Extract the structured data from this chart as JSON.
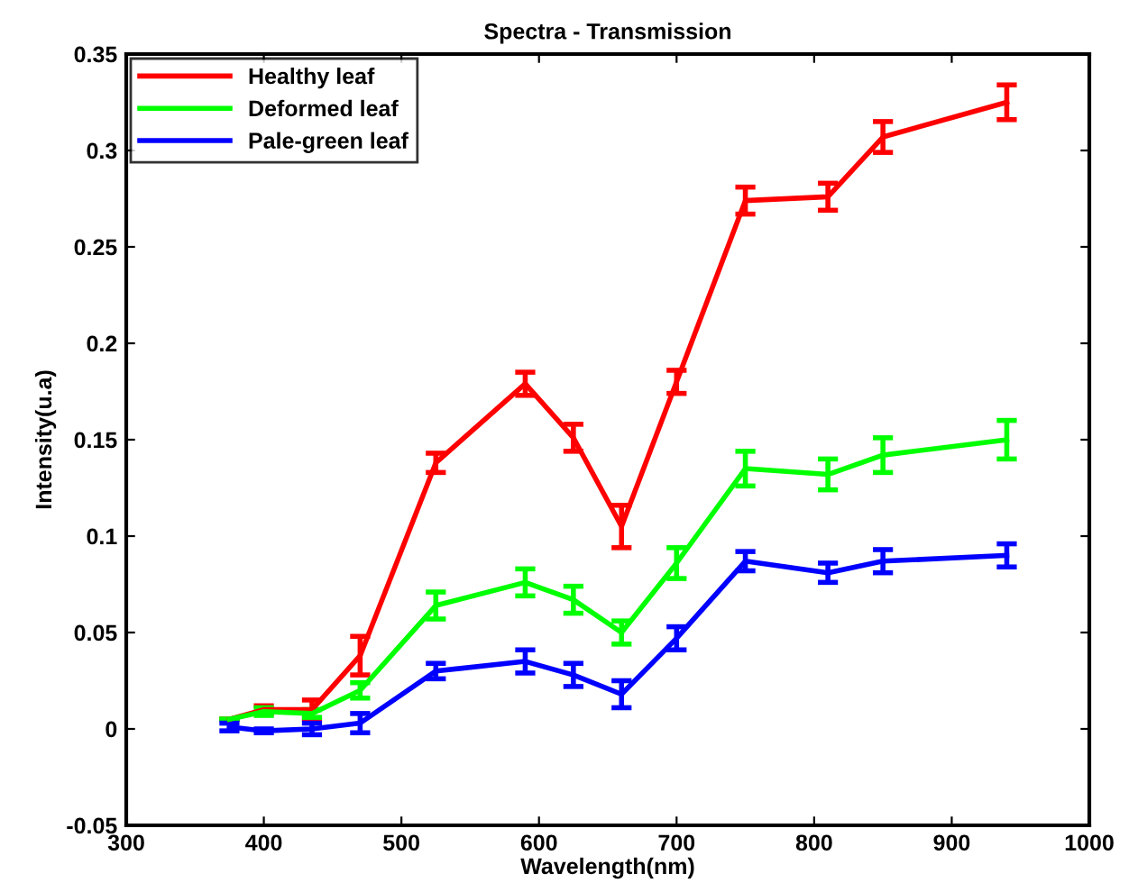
{
  "chart_data": {
    "type": "line",
    "title": "Spectra - Transmission",
    "xlabel": "Wavelength(nm)",
    "ylabel": "Intensity(u.a)",
    "x": [
      375,
      400,
      435,
      470,
      525,
      590,
      625,
      660,
      700,
      750,
      810,
      850,
      940
    ],
    "series": [
      {
        "name": "Healthy leaf",
        "color": "#ff0000",
        "values": [
          0.005,
          0.01,
          0.01,
          0.038,
          0.138,
          0.179,
          0.151,
          0.105,
          0.18,
          0.274,
          0.276,
          0.307,
          0.325
        ],
        "errors": [
          null,
          0.002,
          0.005,
          0.01,
          0.005,
          0.006,
          0.007,
          0.011,
          0.006,
          0.007,
          0.007,
          0.008,
          0.009
        ]
      },
      {
        "name": "Deformed leaf",
        "color": "#00ff00",
        "values": [
          0.005,
          0.009,
          0.008,
          0.02,
          0.064,
          0.076,
          0.067,
          0.05,
          0.086,
          0.135,
          0.132,
          0.142,
          0.15
        ],
        "errors": [
          null,
          0.002,
          0.002,
          0.004,
          0.007,
          0.007,
          0.007,
          0.006,
          0.008,
          0.009,
          0.008,
          0.009,
          0.01
        ]
      },
      {
        "name": "Pale-green leaf",
        "color": "#0000ff",
        "values": [
          0.001,
          -0.001,
          0,
          0.003,
          0.03,
          0.035,
          0.028,
          0.018,
          0.047,
          0.087,
          0.081,
          0.087,
          0.09
        ],
        "errors": [
          0.002,
          0.001,
          0.003,
          0.005,
          0.004,
          0.006,
          0.006,
          0.007,
          0.006,
          0.005,
          0.005,
          0.006,
          0.006
        ]
      }
    ],
    "xlim": [
      300,
      1000
    ],
    "xticks": [
      300,
      400,
      500,
      600,
      700,
      800,
      900,
      1000
    ],
    "ylim": [
      -0.05,
      0.35
    ],
    "yticks": [
      {
        "value": -0.05,
        "label": "-0.05"
      },
      0,
      0.05,
      0.1,
      0.15,
      0.2,
      0.25,
      0.3,
      0.35
    ],
    "grid": false,
    "legend": "top left",
    "marker": "none",
    "line_style": "solid"
  }
}
